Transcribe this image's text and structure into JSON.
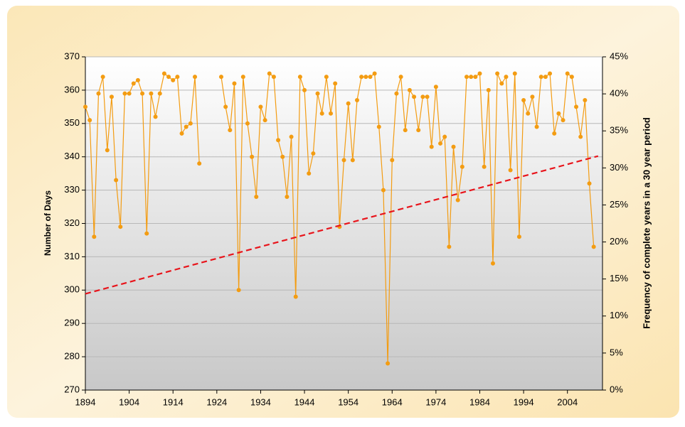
{
  "chart_data": {
    "type": "line",
    "y_label": "Number of Days",
    "y2_label": "Frequency of complete years in a 30 year period",
    "xlim": [
      1894,
      2012
    ],
    "xticks": [
      1894,
      1904,
      1914,
      1924,
      1934,
      1944,
      1954,
      1964,
      1974,
      1984,
      1994,
      2004
    ],
    "ylim": [
      270,
      370
    ],
    "yticks": [
      270,
      280,
      290,
      300,
      310,
      320,
      330,
      340,
      350,
      360,
      370
    ],
    "y2lim": [
      0,
      45
    ],
    "y2ticks": [
      {
        "value": 0,
        "label": "0%"
      },
      {
        "value": 5,
        "label": "5%"
      },
      {
        "value": 10,
        "label": "10%"
      },
      {
        "value": 15,
        "label": "15%"
      },
      {
        "value": 20,
        "label": "20%"
      },
      {
        "value": 25,
        "label": "25%"
      },
      {
        "value": 30,
        "label": "30%"
      },
      {
        "value": 35,
        "label": "35%"
      },
      {
        "value": 40,
        "label": "40%"
      },
      {
        "value": 45,
        "label": "45%"
      }
    ],
    "grid": true,
    "series": [
      {
        "color": "#f39c12",
        "markers": true,
        "x": [
          1894,
          1895,
          1896,
          1897,
          1898,
          1899,
          1900,
          1901,
          1902,
          1903,
          1904,
          1905,
          1906,
          1907,
          1908,
          1909,
          1910,
          1911,
          1912,
          1913,
          1914,
          1915,
          1916,
          1917,
          1918,
          1919,
          1920,
          1921,
          1922,
          1923,
          1924,
          1925,
          1926,
          1927,
          1928,
          1929,
          1930,
          1931,
          1932,
          1933,
          1934,
          1935,
          1936,
          1937,
          1938,
          1939,
          1940,
          1941,
          1942,
          1943,
          1944,
          1945,
          1946,
          1947,
          1948,
          1949,
          1950,
          1951,
          1952,
          1953,
          1954,
          1955,
          1956,
          1957,
          1958,
          1959,
          1960,
          1961,
          1962,
          1963,
          1964,
          1965,
          1966,
          1967,
          1968,
          1969,
          1970,
          1971,
          1972,
          1973,
          1974,
          1975,
          1976,
          1977,
          1978,
          1979,
          1980,
          1981,
          1982,
          1983,
          1984,
          1985,
          1986,
          1987,
          1988,
          1989,
          1990,
          1991,
          1992,
          1993,
          1994,
          1995,
          1996,
          1997,
          1998,
          1999,
          2000,
          2001,
          2002,
          2003,
          2004,
          2005,
          2006,
          2007,
          2008,
          2009,
          2010
        ],
        "values": [
          355,
          351,
          316,
          359,
          364,
          342,
          358,
          333,
          319,
          359,
          359,
          362,
          363,
          359,
          317,
          359,
          352,
          359,
          365,
          364,
          363,
          364,
          347,
          349,
          350,
          364,
          338,
          null,
          null,
          null,
          null,
          364,
          355,
          348,
          362,
          300,
          364,
          350,
          340,
          328,
          355,
          351,
          365,
          364,
          345,
          340,
          328,
          346,
          298,
          364,
          360,
          335,
          341,
          359,
          353,
          364,
          353,
          362,
          319,
          339,
          356,
          339,
          357,
          364,
          364,
          364,
          365,
          349,
          330,
          278,
          339,
          359,
          364,
          348,
          360,
          358,
          348,
          358,
          358,
          343,
          361,
          344,
          346,
          313,
          343,
          327,
          337,
          364,
          364,
          364,
          365,
          337,
          360,
          308,
          365,
          362,
          364,
          336,
          365,
          316,
          357,
          353,
          358,
          349,
          364,
          364,
          365,
          347,
          353,
          351,
          365,
          364,
          355,
          346,
          357,
          332,
          313
        ]
      },
      {
        "color": "#e8141b",
        "dashed": true,
        "axis": "y2",
        "x": [
          1894,
          2011
        ],
        "values": [
          13,
          31.6
        ]
      }
    ]
  }
}
